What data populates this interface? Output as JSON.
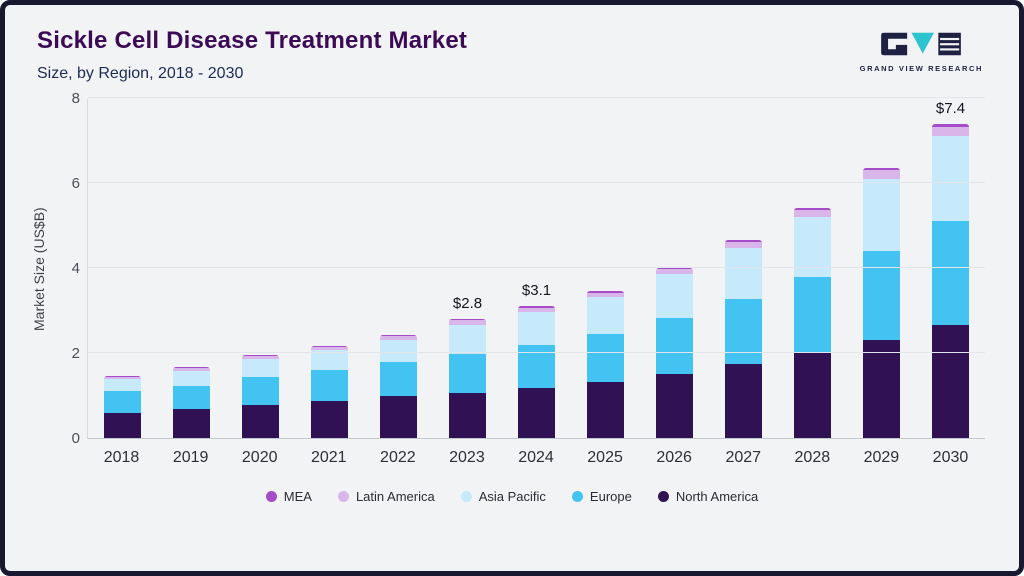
{
  "header": {
    "title": "Sickle Cell Disease Treatment Market",
    "subtitle": "Size, by Region, 2018 - 2030",
    "brand": "GRAND VIEW RESEARCH"
  },
  "chart_data": {
    "type": "bar",
    "stacked": true,
    "title": "Sickle Cell Disease Treatment Market",
    "subtitle": "Size, by Region, 2018 - 2030",
    "ylabel": "Market Size (US$B)",
    "ylim": [
      0,
      8
    ],
    "yticks": [
      0,
      2,
      4,
      6,
      8
    ],
    "grid": true,
    "legend_position": "bottom",
    "categories": [
      "2018",
      "2019",
      "2020",
      "2021",
      "2022",
      "2023",
      "2024",
      "2025",
      "2026",
      "2027",
      "2028",
      "2029",
      "2030"
    ],
    "series": [
      {
        "name": "North America",
        "color": "#301254",
        "values": [
          0.6,
          0.68,
          0.78,
          0.88,
          0.98,
          1.05,
          1.18,
          1.32,
          1.5,
          1.75,
          2.0,
          2.3,
          2.65
        ]
      },
      {
        "name": "Europe",
        "color": "#42c3f1",
        "values": [
          0.5,
          0.55,
          0.65,
          0.72,
          0.8,
          0.92,
          1.0,
          1.12,
          1.32,
          1.52,
          1.8,
          2.1,
          2.45
        ]
      },
      {
        "name": "Asia Pacific",
        "color": "#c6e9fb",
        "values": [
          0.28,
          0.35,
          0.44,
          0.47,
          0.53,
          0.7,
          0.79,
          0.87,
          1.03,
          1.2,
          1.4,
          1.7,
          2.0
        ]
      },
      {
        "name": "Latin America",
        "color": "#d9b6ea",
        "values": [
          0.05,
          0.06,
          0.07,
          0.08,
          0.09,
          0.1,
          0.1,
          0.11,
          0.12,
          0.14,
          0.16,
          0.2,
          0.22
        ]
      },
      {
        "name": "MEA",
        "color": "#a64cc8",
        "values": [
          0.02,
          0.02,
          0.02,
          0.02,
          0.03,
          0.03,
          0.03,
          0.03,
          0.04,
          0.04,
          0.05,
          0.05,
          0.08
        ]
      }
    ],
    "annotations": [
      {
        "category": "2023",
        "text": "$2.8"
      },
      {
        "category": "2024",
        "text": "$3.1"
      },
      {
        "category": "2030",
        "text": "$7.4"
      }
    ],
    "legend": [
      "MEA",
      "Latin America",
      "Asia Pacific",
      "Europe",
      "North America"
    ]
  }
}
